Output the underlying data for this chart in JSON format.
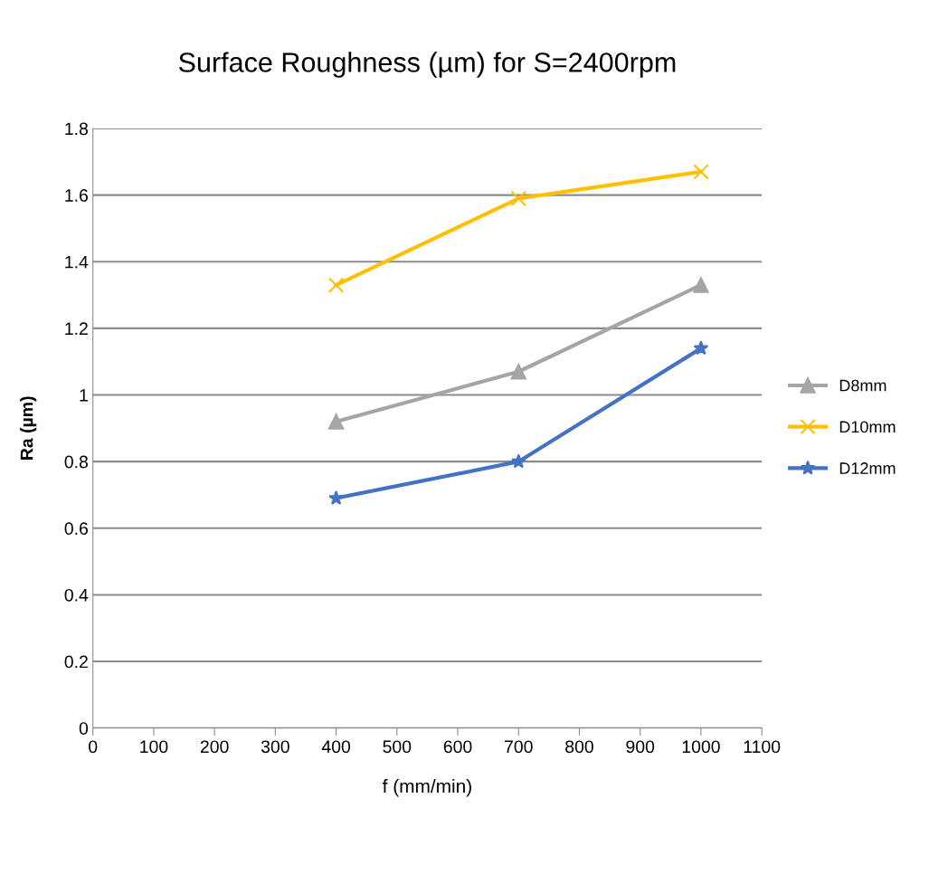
{
  "chart_data": {
    "type": "line",
    "title": "Surface Roughness (µm) for S=2400rpm",
    "xlabel": "f (mm/min)",
    "ylabel": "Ra (µm)",
    "x": [
      400,
      700,
      1000
    ],
    "series": [
      {
        "name": "D8mm",
        "color": "#a5a5a5",
        "marker": "triangle",
        "values": [
          0.92,
          1.07,
          1.33
        ]
      },
      {
        "name": "D10mm",
        "color": "#ffc000",
        "marker": "cross",
        "values": [
          1.33,
          1.59,
          1.67
        ]
      },
      {
        "name": "D12mm",
        "color": "#4472c4",
        "marker": "star",
        "values": [
          0.69,
          0.8,
          1.14
        ]
      }
    ],
    "xlim": [
      0,
      1100
    ],
    "xticks": [
      0,
      100,
      200,
      300,
      400,
      500,
      600,
      700,
      800,
      900,
      1000,
      1100
    ],
    "ylim": [
      0,
      1.8
    ],
    "yticks": [
      0,
      0.2,
      0.4,
      0.6,
      0.8,
      1,
      1.2,
      1.4,
      1.6,
      1.8
    ],
    "grid": "y",
    "legend": "right",
    "line_style": "solid"
  }
}
